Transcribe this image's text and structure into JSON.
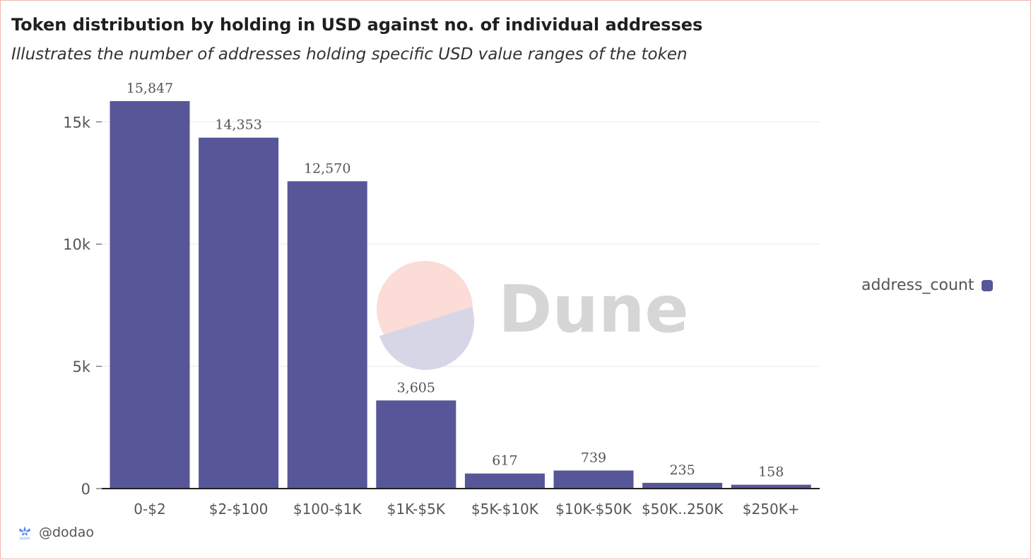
{
  "title": "Token distribution by holding in USD against no. of individual addresses",
  "subtitle": "Illustrates the number of addresses holding specific USD value ranges of the token",
  "watermark": "Dune",
  "credit": "@dodao",
  "credit_logo_text": "DoDAO",
  "colors": {
    "bar": "#575699",
    "grid": "#e8e8ee",
    "axis": "#222222"
  },
  "chart_data": {
    "type": "bar",
    "categories": [
      "0-$2",
      "$2-$100",
      "$100-$1K",
      "$1K-$5K",
      "$5K-$10K",
      "$10K-$50K",
      "$50K..250K",
      "$250K+"
    ],
    "series": [
      {
        "name": "address_count",
        "values": [
          15847,
          14353,
          12570,
          3605,
          617,
          739,
          235,
          158
        ]
      }
    ],
    "data_labels": [
      "15,847",
      "14,353",
      "12,570",
      "3,605",
      "617",
      "739",
      "235",
      "158"
    ],
    "ylim": [
      0,
      15847
    ],
    "yticks": [
      0,
      5000,
      10000,
      15000
    ],
    "ytick_labels": [
      "0",
      "5k",
      "10k",
      "15k"
    ],
    "grid": true,
    "legend": "right"
  }
}
